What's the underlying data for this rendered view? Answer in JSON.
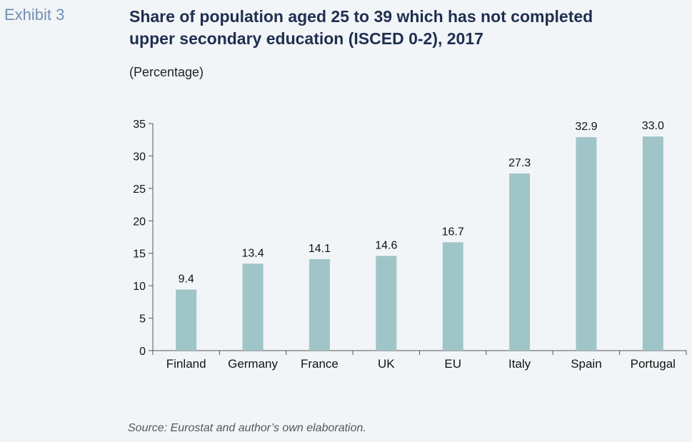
{
  "header": {
    "exhibit": "Exhibit 3",
    "title_line1": "Share of population aged 25 to 39 which has not completed",
    "title_line2": "upper secondary education (ISCED 0-2), 2017",
    "subtitle": "(Percentage)"
  },
  "footer": {
    "source": "Source: Eurostat and author’s own elaboration."
  },
  "colors": {
    "bar": "#9fc5c8",
    "axis": "#555555"
  },
  "chart_data": {
    "type": "bar",
    "title": "Share of population aged 25 to 39 which has not completed upper secondary education (ISCED 0-2), 2017",
    "ylabel": "(Percentage)",
    "xlabel": "",
    "categories": [
      "Finland",
      "Germany",
      "France",
      "UK",
      "EU",
      "Italy",
      "Spain",
      "Portugal"
    ],
    "values": [
      9.4,
      13.4,
      14.1,
      14.6,
      16.7,
      27.3,
      32.9,
      33.0
    ],
    "data_labels": [
      "9.4",
      "13.4",
      "14.1",
      "14.6",
      "16.7",
      "27.3",
      "32.9",
      "33.0"
    ],
    "yticks": [
      0,
      5,
      10,
      15,
      20,
      25,
      30,
      35
    ],
    "ylim": [
      0,
      35
    ],
    "grid": false,
    "legend": "none"
  }
}
